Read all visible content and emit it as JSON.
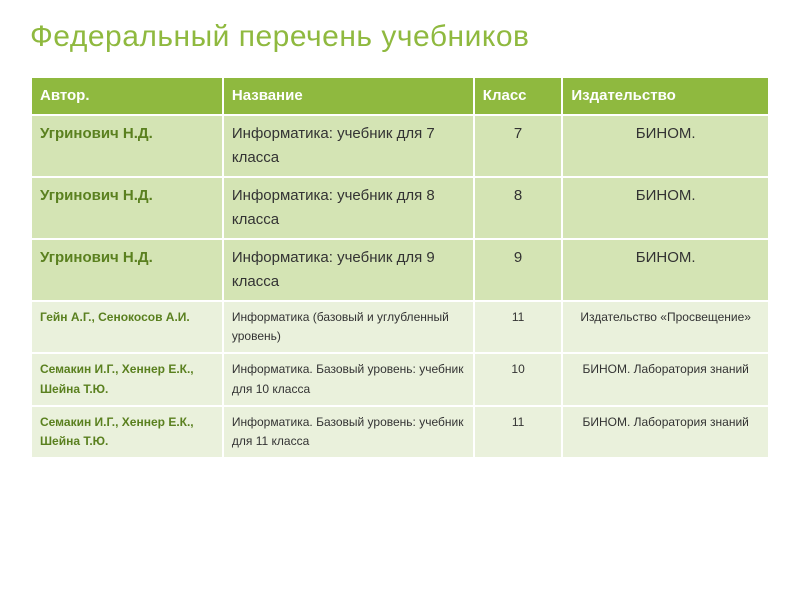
{
  "title": {
    "text": "Федеральный перечень учебников",
    "color": "#8fb93f",
    "fontsize": 30
  },
  "table": {
    "header_bg": "#8fb93f",
    "header_color": "#ffffff",
    "header_fontsize": 15,
    "large_row_bg": "#d4e4b4",
    "small_row_bg": "#eaf1dc",
    "large_fontsize": 15,
    "small_fontsize": 12,
    "bold_text_color": "#5a801f",
    "normal_text_color": "#333333",
    "columns": [
      "Автор.",
      "Название",
      "Класс",
      "Издательство"
    ],
    "rows": [
      {
        "size": "large",
        "author": "Угринович Н.Д.",
        "title": "Информатика: учебник для 7 класса",
        "grade": "7",
        "publisher": "БИНОМ."
      },
      {
        "size": "large",
        "author": "Угринович Н.Д.",
        "title": "Информатика: учебник для 8 класса",
        "grade": "8",
        "publisher": "БИНОМ."
      },
      {
        "size": "large",
        "author": "Угринович Н.Д.",
        "title": "Информатика: учебник для 9 класса",
        "grade": "9",
        "publisher": "БИНОМ."
      },
      {
        "size": "small",
        "author": "Гейн А.Г., Сенокосов А.И.",
        "title": "Информатика (базовый и углубленный уровень)",
        "grade": "11",
        "publisher": "Издательство «Просвещение»"
      },
      {
        "size": "small",
        "author": "Семакин И.Г., Хеннер Е.К., Шейна Т.Ю.",
        "title": "Информатика. Базовый уровень: учебник для 10 класса",
        "grade": "10",
        "publisher": "БИНОМ. Лаборатория знаний"
      },
      {
        "size": "small",
        "author": "Семакин И.Г., Хеннер Е.К., Шейна Т.Ю.",
        "title": "Информатика. Базовый уровень: учебник для 11 класса",
        "grade": "11",
        "publisher": "БИНОМ. Лаборатория знаний"
      }
    ]
  }
}
